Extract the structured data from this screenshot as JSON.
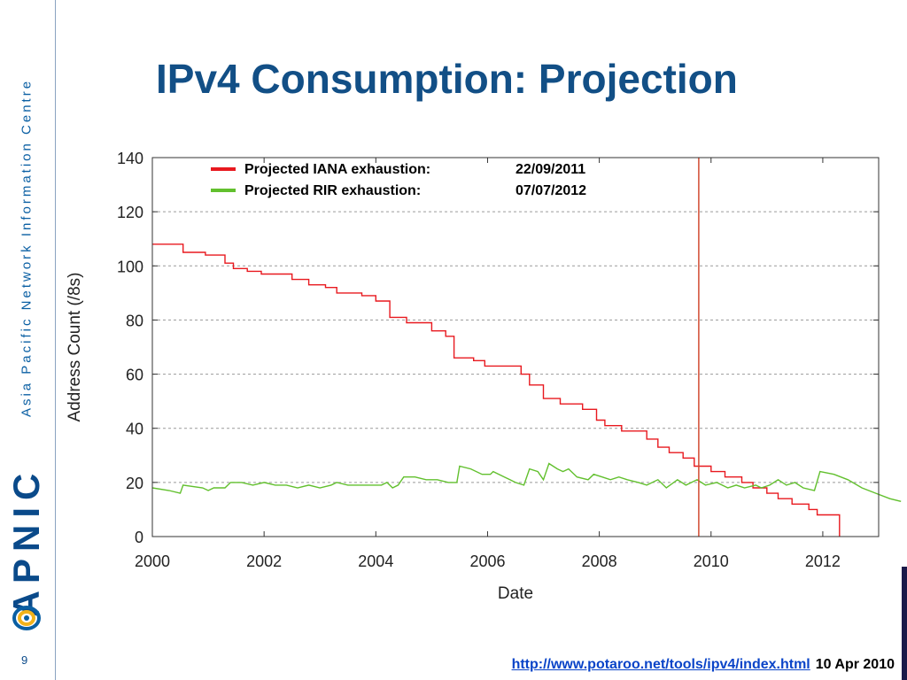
{
  "slide": {
    "title": "IPv4 Consumption: Projection",
    "org_full_name": "Asia Pacific Network Information Centre",
    "org_logo_text": "APNIC",
    "page_number": "9",
    "footer_link": "http://www.potaroo.net/tools/ipv4/index.html",
    "footer_date": "10  Apr 2010"
  },
  "colors": {
    "title": "#124f86",
    "iana": "#e8191f",
    "rir": "#62c02e",
    "vline": "#d24a32",
    "link": "#0a44c8"
  },
  "chart_data": {
    "type": "line",
    "xlabel": "Date",
    "ylabel": "Address Count (/8s)",
    "xlim": [
      2000,
      2013
    ],
    "ylim": [
      0,
      140
    ],
    "xticks": [
      2000,
      2002,
      2004,
      2006,
      2008,
      2010,
      2012
    ],
    "yticks": [
      0,
      20,
      40,
      60,
      80,
      100,
      120,
      140
    ],
    "grid": "horizontal dashed",
    "legend_placement": "top-left",
    "vertical_marker_x": 2009.78,
    "legend": [
      {
        "label": "Projected IANA exhaustion:",
        "date": "22/09/2011",
        "color": "#e8191f"
      },
      {
        "label": "Projected RIR exhaustion:",
        "date": "07/07/2012",
        "color": "#62c02e"
      }
    ],
    "series": [
      {
        "name": "Projected IANA exhaustion",
        "color": "#e8191f",
        "step": true,
        "points": [
          [
            2000.0,
            108
          ],
          [
            2000.55,
            108
          ],
          [
            2000.55,
            105
          ],
          [
            2000.95,
            105
          ],
          [
            2000.95,
            104
          ],
          [
            2001.3,
            104
          ],
          [
            2001.3,
            101
          ],
          [
            2001.45,
            101
          ],
          [
            2001.45,
            99
          ],
          [
            2001.7,
            99
          ],
          [
            2001.7,
            98
          ],
          [
            2001.95,
            98
          ],
          [
            2001.95,
            97
          ],
          [
            2002.5,
            97
          ],
          [
            2002.5,
            95
          ],
          [
            2002.8,
            95
          ],
          [
            2002.8,
            93
          ],
          [
            2003.1,
            93
          ],
          [
            2003.1,
            92
          ],
          [
            2003.3,
            92
          ],
          [
            2003.3,
            90
          ],
          [
            2003.75,
            90
          ],
          [
            2003.75,
            89
          ],
          [
            2004.0,
            89
          ],
          [
            2004.0,
            87
          ],
          [
            2004.25,
            87
          ],
          [
            2004.25,
            81
          ],
          [
            2004.55,
            81
          ],
          [
            2004.55,
            79
          ],
          [
            2005.0,
            79
          ],
          [
            2005.0,
            76
          ],
          [
            2005.25,
            76
          ],
          [
            2005.25,
            74
          ],
          [
            2005.4,
            74
          ],
          [
            2005.4,
            66
          ],
          [
            2005.75,
            66
          ],
          [
            2005.75,
            65
          ],
          [
            2005.95,
            65
          ],
          [
            2005.95,
            63
          ],
          [
            2006.6,
            63
          ],
          [
            2006.6,
            60
          ],
          [
            2006.75,
            60
          ],
          [
            2006.75,
            56
          ],
          [
            2007.0,
            56
          ],
          [
            2007.0,
            51
          ],
          [
            2007.3,
            51
          ],
          [
            2007.3,
            49
          ],
          [
            2007.7,
            49
          ],
          [
            2007.7,
            47
          ],
          [
            2007.95,
            47
          ],
          [
            2007.95,
            43
          ],
          [
            2008.1,
            43
          ],
          [
            2008.1,
            41
          ],
          [
            2008.4,
            41
          ],
          [
            2008.4,
            39
          ],
          [
            2008.85,
            39
          ],
          [
            2008.85,
            36
          ],
          [
            2009.05,
            36
          ],
          [
            2009.05,
            33
          ],
          [
            2009.25,
            33
          ],
          [
            2009.25,
            31
          ],
          [
            2009.5,
            31
          ],
          [
            2009.5,
            29
          ],
          [
            2009.7,
            29
          ],
          [
            2009.7,
            26
          ],
          [
            2010.0,
            26
          ],
          [
            2010.0,
            24
          ],
          [
            2010.25,
            24
          ],
          [
            2010.25,
            22
          ],
          [
            2010.55,
            22
          ],
          [
            2010.55,
            20
          ],
          [
            2010.75,
            20
          ],
          [
            2010.75,
            18
          ],
          [
            2011.0,
            18
          ],
          [
            2011.0,
            16
          ],
          [
            2011.2,
            16
          ],
          [
            2011.2,
            14
          ],
          [
            2011.45,
            14
          ],
          [
            2011.45,
            12
          ],
          [
            2011.75,
            12
          ],
          [
            2011.75,
            10
          ],
          [
            2011.9,
            10
          ],
          [
            2011.9,
            8
          ],
          [
            2012.3,
            8
          ],
          [
            2012.3,
            0
          ]
        ]
      },
      {
        "name": "Projected RIR exhaustion",
        "color": "#62c02e",
        "step": false,
        "points": [
          [
            2000.0,
            18
          ],
          [
            2000.3,
            17
          ],
          [
            2000.5,
            16
          ],
          [
            2000.55,
            19
          ],
          [
            2000.9,
            18
          ],
          [
            2001.0,
            17
          ],
          [
            2001.1,
            18
          ],
          [
            2001.3,
            18
          ],
          [
            2001.4,
            20
          ],
          [
            2001.6,
            20
          ],
          [
            2001.8,
            19
          ],
          [
            2002.0,
            20
          ],
          [
            2002.2,
            19
          ],
          [
            2002.4,
            19
          ],
          [
            2002.6,
            18
          ],
          [
            2002.8,
            19
          ],
          [
            2003.0,
            18
          ],
          [
            2003.2,
            19
          ],
          [
            2003.3,
            20
          ],
          [
            2003.5,
            19
          ],
          [
            2003.7,
            19
          ],
          [
            2003.9,
            19
          ],
          [
            2004.1,
            19
          ],
          [
            2004.2,
            20
          ],
          [
            2004.3,
            18
          ],
          [
            2004.4,
            19
          ],
          [
            2004.5,
            22
          ],
          [
            2004.7,
            22
          ],
          [
            2004.9,
            21
          ],
          [
            2005.1,
            21
          ],
          [
            2005.3,
            20
          ],
          [
            2005.45,
            20
          ],
          [
            2005.5,
            26
          ],
          [
            2005.7,
            25
          ],
          [
            2005.9,
            23
          ],
          [
            2006.05,
            23
          ],
          [
            2006.1,
            24
          ],
          [
            2006.3,
            22
          ],
          [
            2006.4,
            21
          ],
          [
            2006.5,
            20
          ],
          [
            2006.65,
            19
          ],
          [
            2006.75,
            25
          ],
          [
            2006.9,
            24
          ],
          [
            2007.0,
            21
          ],
          [
            2007.1,
            27
          ],
          [
            2007.25,
            25
          ],
          [
            2007.35,
            24
          ],
          [
            2007.45,
            25
          ],
          [
            2007.6,
            22
          ],
          [
            2007.8,
            21
          ],
          [
            2007.9,
            23
          ],
          [
            2008.05,
            22
          ],
          [
            2008.2,
            21
          ],
          [
            2008.35,
            22
          ],
          [
            2008.5,
            21
          ],
          [
            2008.7,
            20
          ],
          [
            2008.85,
            19
          ],
          [
            2009.05,
            21
          ],
          [
            2009.2,
            18
          ],
          [
            2009.4,
            21
          ],
          [
            2009.55,
            19
          ],
          [
            2009.75,
            21
          ],
          [
            2009.9,
            19
          ],
          [
            2010.1,
            20
          ],
          [
            2010.3,
            18
          ],
          [
            2010.45,
            19
          ],
          [
            2010.6,
            18
          ],
          [
            2010.8,
            19
          ],
          [
            2010.9,
            18
          ],
          [
            2011.05,
            19
          ],
          [
            2011.2,
            21
          ],
          [
            2011.35,
            19
          ],
          [
            2011.5,
            20
          ],
          [
            2011.65,
            18
          ],
          [
            2011.85,
            17
          ],
          [
            2011.95,
            24
          ],
          [
            2012.2,
            23
          ],
          [
            2012.45,
            21
          ],
          [
            2012.7,
            18
          ],
          [
            2012.95,
            16
          ],
          [
            2013.2,
            14
          ],
          [
            2013.4,
            13
          ]
        ]
      }
    ]
  }
}
